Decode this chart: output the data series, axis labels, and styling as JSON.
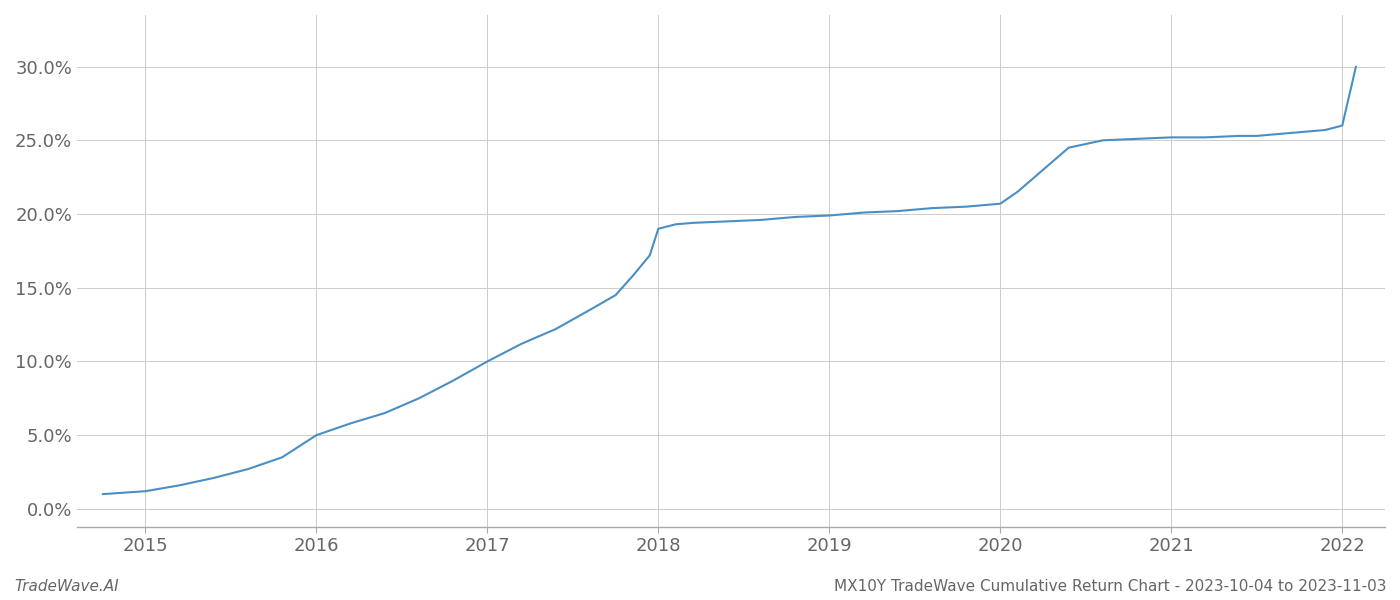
{
  "title": "",
  "footer_left": "TradeWave.AI",
  "footer_right": "MX10Y TradeWave Cumulative Return Chart - 2023-10-04 to 2023-11-03",
  "line_color": "#4a8fc4",
  "background_color": "#ffffff",
  "grid_color": "#cccccc",
  "axis_color": "#aaaaaa",
  "text_color": "#666666",
  "x_values": [
    2014.75,
    2015.0,
    2015.1,
    2015.2,
    2015.4,
    2015.6,
    2015.8,
    2016.0,
    2016.2,
    2016.4,
    2016.6,
    2016.8,
    2017.0,
    2017.2,
    2017.4,
    2017.6,
    2017.75,
    2017.85,
    2017.95,
    2018.0,
    2018.1,
    2018.2,
    2018.4,
    2018.6,
    2018.8,
    2019.0,
    2019.1,
    2019.2,
    2019.4,
    2019.5,
    2019.6,
    2019.8,
    2020.0,
    2020.1,
    2020.2,
    2020.4,
    2020.6,
    2020.8,
    2021.0,
    2021.2,
    2021.4,
    2021.5,
    2021.6,
    2021.7,
    2021.8,
    2021.9,
    2022.0,
    2022.08
  ],
  "y_values": [
    0.01,
    0.012,
    0.014,
    0.016,
    0.021,
    0.027,
    0.035,
    0.05,
    0.058,
    0.065,
    0.075,
    0.087,
    0.1,
    0.112,
    0.122,
    0.135,
    0.145,
    0.158,
    0.172,
    0.19,
    0.193,
    0.194,
    0.195,
    0.196,
    0.198,
    0.199,
    0.2,
    0.201,
    0.202,
    0.203,
    0.204,
    0.205,
    0.207,
    0.215,
    0.225,
    0.245,
    0.25,
    0.251,
    0.252,
    0.252,
    0.253,
    0.253,
    0.254,
    0.255,
    0.256,
    0.257,
    0.26,
    0.3
  ],
  "yticks": [
    0.0,
    0.05,
    0.1,
    0.15,
    0.2,
    0.25,
    0.3
  ],
  "ytick_labels": [
    "0.0%",
    "5.0%",
    "10.0%",
    "15.0%",
    "20.0%",
    "25.0%",
    "30.0%"
  ],
  "xticks": [
    2015,
    2016,
    2017,
    2018,
    2019,
    2020,
    2021,
    2022
  ],
  "xtick_labels": [
    "2015",
    "2016",
    "2017",
    "2018",
    "2019",
    "2020",
    "2021",
    "2022"
  ],
  "xlim": [
    2014.6,
    2022.25
  ],
  "ylim": [
    -0.012,
    0.335
  ]
}
